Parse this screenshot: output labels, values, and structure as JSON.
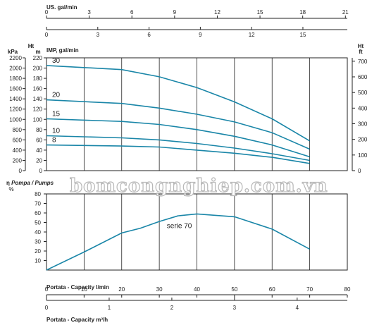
{
  "watermark": "bomcongnghiep.com.vn",
  "colors": {
    "curve": "#1a86a8",
    "axis": "#222222",
    "watermark_stroke": "#b8b8b8"
  },
  "chart_data": [
    {
      "type": "line",
      "name": "head_chart",
      "top_axis": {
        "label": "US. gal/min",
        "ticks": [
          "0",
          "3",
          "6",
          "9",
          "12",
          "15",
          "18",
          "21"
        ],
        "ticks_secondary": [
          "0",
          "3",
          "6",
          "9",
          "12",
          "15"
        ]
      },
      "left_axis_kpa": {
        "unit": "kPa",
        "ticks": [
          "0",
          "200",
          "400",
          "600",
          "800",
          "1000",
          "1200",
          "1400",
          "1600",
          "1800",
          "2000",
          "2200"
        ]
      },
      "left_axis_m": {
        "label": "Ht",
        "unit": "m",
        "ticks": [
          "0",
          "20",
          "40",
          "60",
          "80",
          "100",
          "120",
          "140",
          "160",
          "180",
          "200",
          "220"
        ],
        "ylim": [
          0,
          220
        ]
      },
      "right_axis_ft": {
        "label": "Ht",
        "unit": "ft",
        "ticks": [
          "0",
          "100",
          "200",
          "300",
          "400",
          "500",
          "600",
          "700"
        ]
      },
      "imp_label": "IMP, gal/min",
      "x_unit": "l/min",
      "xlim": [
        0,
        80
      ],
      "series": [
        {
          "name": "30",
          "x": [
            0,
            20,
            30,
            40,
            50,
            60,
            70
          ],
          "y": [
            205,
            197,
            183,
            162,
            134,
            101,
            58
          ]
        },
        {
          "name": "20",
          "x": [
            0,
            20,
            30,
            40,
            50,
            60,
            70
          ],
          "y": [
            138,
            131,
            122,
            110,
            95,
            74,
            42
          ]
        },
        {
          "name": "15",
          "x": [
            0,
            20,
            30,
            40,
            50,
            60,
            70
          ],
          "y": [
            101,
            96,
            90,
            80,
            67,
            50,
            27
          ]
        },
        {
          "name": "10",
          "x": [
            0,
            20,
            30,
            40,
            50,
            60,
            70
          ],
          "y": [
            68,
            64,
            60,
            53,
            44,
            33,
            20
          ]
        },
        {
          "name": "8",
          "x": [
            0,
            20,
            30,
            40,
            50,
            60,
            70
          ],
          "y": [
            50,
            48,
            46,
            40,
            34,
            26,
            14
          ]
        }
      ]
    },
    {
      "type": "line",
      "name": "efficiency_chart",
      "title": "Pompa / Pumps",
      "eta_symbol": "η",
      "ylabel_unit": "%",
      "ylim": [
        0,
        80
      ],
      "yticks": [
        "10",
        "20",
        "30",
        "40",
        "50",
        "60",
        "70",
        "80"
      ],
      "series": [
        {
          "name": "serie 70",
          "x": [
            0,
            10,
            20,
            25,
            30,
            35,
            40,
            50,
            60,
            70
          ],
          "y": [
            0,
            19,
            39,
            44,
            51,
            57,
            59,
            56,
            43,
            22
          ]
        }
      ]
    },
    {
      "type": "axis",
      "name": "capacity_axes",
      "lmin_label": "Portata - Capacity l/min",
      "lmin_ticks": [
        "0",
        "10",
        "20",
        "30",
        "40",
        "50",
        "60",
        "70",
        "80"
      ],
      "m3h_label": "Portata - Capacity m³/h",
      "m3h_ticks": [
        "0",
        "1",
        "2",
        "3",
        "4"
      ]
    }
  ]
}
